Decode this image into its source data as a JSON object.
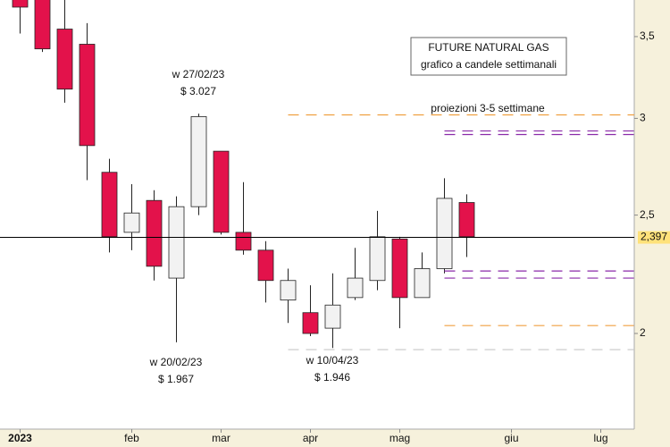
{
  "chart_data": {
    "type": "candlestick",
    "title_lines": [
      "FUTURE NATURAL GAS",
      "grafico a candele settimanali"
    ],
    "log_scale": true,
    "x": [
      0,
      1,
      2,
      3,
      4,
      5,
      6,
      7,
      8,
      9,
      10,
      11,
      12,
      13,
      14,
      15,
      16,
      17,
      18,
      19,
      20
    ],
    "open": [
      3.8,
      3.78,
      3.55,
      3.45,
      2.71,
      2.42,
      2.57,
      2.22,
      2.54,
      2.82,
      2.42,
      2.34,
      2.13,
      2.08,
      2.02,
      2.14,
      2.21,
      2.39,
      2.14,
      2.26,
      2.56
    ],
    "high": [
      3.85,
      3.85,
      3.78,
      3.59,
      2.78,
      2.65,
      2.62,
      2.59,
      3.027,
      2.82,
      2.66,
      2.38,
      2.26,
      2.19,
      2.24,
      2.35,
      2.52,
      2.4,
      2.33,
      2.68,
      2.6
    ],
    "low": [
      3.52,
      3.4,
      3.09,
      2.67,
      2.33,
      2.34,
      2.21,
      1.967,
      2.5,
      2.41,
      2.32,
      2.12,
      2.04,
      1.99,
      1.946,
      2.13,
      2.17,
      2.02,
      2.14,
      2.24,
      2.31
    ],
    "close": [
      3.7,
      3.42,
      3.17,
      2.85,
      2.4,
      2.51,
      2.27,
      2.54,
      3.01,
      2.42,
      2.34,
      2.21,
      2.21,
      2.0,
      2.11,
      2.22,
      2.4,
      2.14,
      2.26,
      2.58,
      2.4
    ],
    "up_color": "#f2f2f2",
    "down_color": "#e3124b",
    "xlim": [
      -0.9,
      27.5
    ],
    "xticks": [
      {
        "value": 0,
        "label": "2023"
      },
      {
        "value": 5,
        "label": "feb"
      },
      {
        "value": 9,
        "label": "mar"
      },
      {
        "value": 13,
        "label": "apr"
      },
      {
        "value": 17,
        "label": "mag"
      },
      {
        "value": 22,
        "label": "giu"
      },
      {
        "value": 26,
        "label": "lug"
      }
    ],
    "ylim": [
      1.67,
      3.75
    ],
    "yticks": [
      {
        "value": 3.5,
        "label": "3,5"
      },
      3,
      {
        "value": 2.5,
        "label": "2,5"
      },
      2
    ],
    "current_price": {
      "value": 2.397,
      "label": "2,397"
    },
    "levels": [
      {
        "value": 3.02,
        "from": 12,
        "color": "#f0a040"
      },
      {
        "value": 2.93,
        "from": 19,
        "color": "#8a2aa8"
      },
      {
        "value": 2.91,
        "from": 19,
        "color": "#8a2aa8"
      },
      {
        "value": 2.25,
        "from": 19,
        "color": "#8a2aa8"
      },
      {
        "value": 2.22,
        "from": 19,
        "color": "#8a2aa8"
      },
      {
        "value": 2.03,
        "from": 19,
        "color": "#f0a040"
      },
      {
        "value": 1.94,
        "from": 12,
        "color": "#c8c8c8"
      }
    ],
    "projection_label": "proiezioni 3-5 settimane",
    "annotations": [
      {
        "lines": [
          "w 27/02/23",
          "$ 3.027"
        ]
      },
      {
        "lines": [
          "w 20/02/23",
          "$ 1.967"
        ]
      },
      {
        "lines": [
          "w 10/04/23",
          "$ 1.946"
        ]
      }
    ]
  }
}
